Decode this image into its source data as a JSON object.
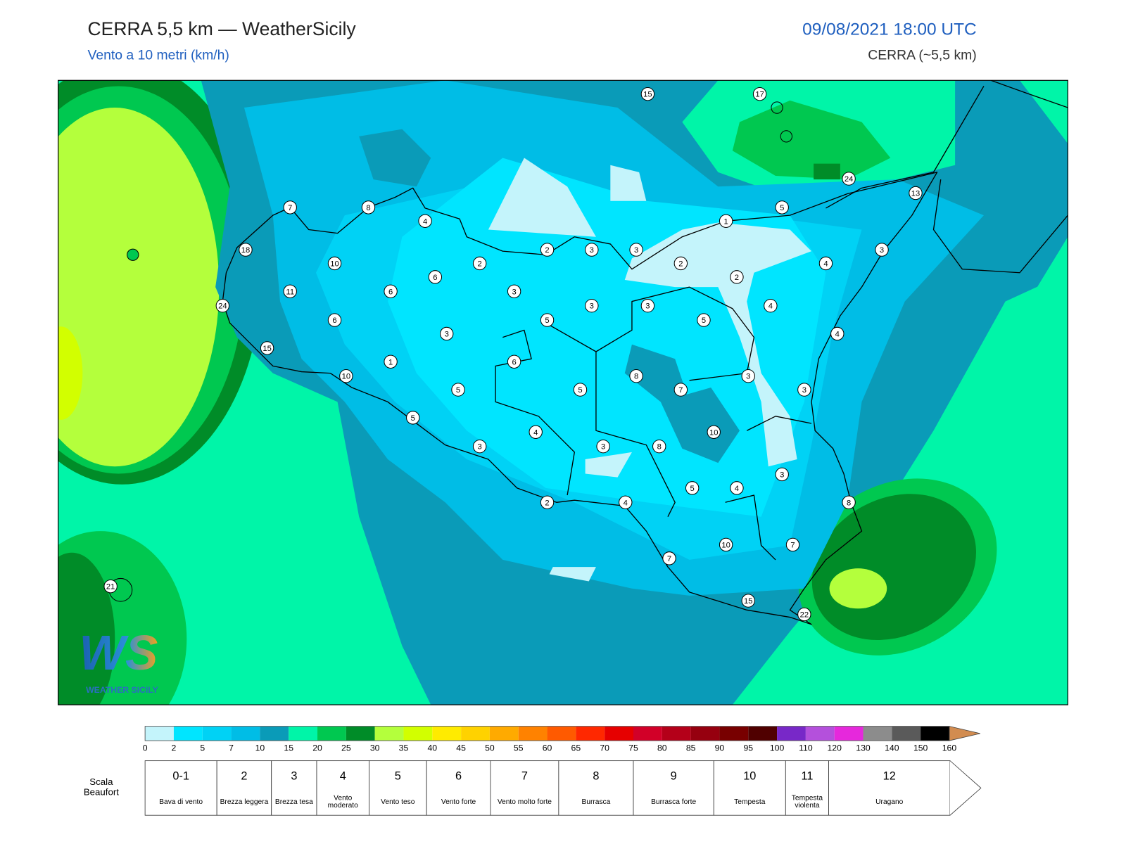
{
  "header": {
    "title": "CERRA 5,5 km — WeatherSicily",
    "subtitle": "Vento a 10 metri (km/h)",
    "datetime": "09/08/2021 18:00 UTC",
    "model": "CERRA (~5,5 km)"
  },
  "map": {
    "stations": [
      15,
      17,
      24,
      13,
      7,
      8,
      4,
      5,
      1,
      18,
      10,
      2,
      3,
      3,
      2,
      2,
      3,
      4,
      2,
      11,
      6,
      6,
      3,
      24,
      6,
      5,
      3,
      3,
      5,
      4,
      3,
      4,
      15,
      1,
      6,
      10,
      8,
      3,
      5,
      5,
      7,
      3,
      5,
      4,
      10,
      3,
      3,
      8,
      3,
      5,
      4,
      2,
      4,
      8,
      10,
      7,
      7,
      21,
      15,
      22
    ],
    "logo": {
      "mark": "WS",
      "name": "WEATHER SICILY"
    }
  },
  "colorbar": {
    "ticks": [
      0,
      2,
      5,
      7,
      10,
      15,
      20,
      25,
      30,
      35,
      40,
      45,
      50,
      55,
      60,
      65,
      70,
      75,
      80,
      85,
      90,
      95,
      100,
      110,
      120,
      130,
      140,
      150,
      160
    ],
    "colors": [
      "#c4f4fb",
      "#00e5ff",
      "#00d2f5",
      "#00bde6",
      "#0a9bb8",
      "#00f5a8",
      "#00c850",
      "#008c28",
      "#b4ff3c",
      "#d2ff00",
      "#ffeb00",
      "#ffd200",
      "#ffaa00",
      "#ff8200",
      "#ff5a00",
      "#ff2800",
      "#e60000",
      "#d20028",
      "#b40019",
      "#96000f",
      "#780000",
      "#500000",
      "#7828c8",
      "#b450dc",
      "#e628dc",
      "#8c8c8c",
      "#5a5a5a",
      "#000000",
      "#8c4628",
      "#c87d46"
    ],
    "extend_color": "#d28c50"
  },
  "beaufort": {
    "label": "Scala Beaufort",
    "classes": [
      {
        "force": "0-1",
        "name": "Bava di vento"
      },
      {
        "force": "2",
        "name": "Brezza leggera"
      },
      {
        "force": "3",
        "name": "Brezza tesa"
      },
      {
        "force": "4",
        "name": "Vento moderato"
      },
      {
        "force": "5",
        "name": "Vento teso"
      },
      {
        "force": "6",
        "name": "Vento forte"
      },
      {
        "force": "7",
        "name": "Vento molto forte"
      },
      {
        "force": "8",
        "name": "Burrasca"
      },
      {
        "force": "9",
        "name": "Burrasca forte"
      },
      {
        "force": "10",
        "name": "Tempesta"
      },
      {
        "force": "11",
        "name": "Tempesta violenta"
      },
      {
        "force": "12",
        "name": "Uragano"
      }
    ]
  }
}
